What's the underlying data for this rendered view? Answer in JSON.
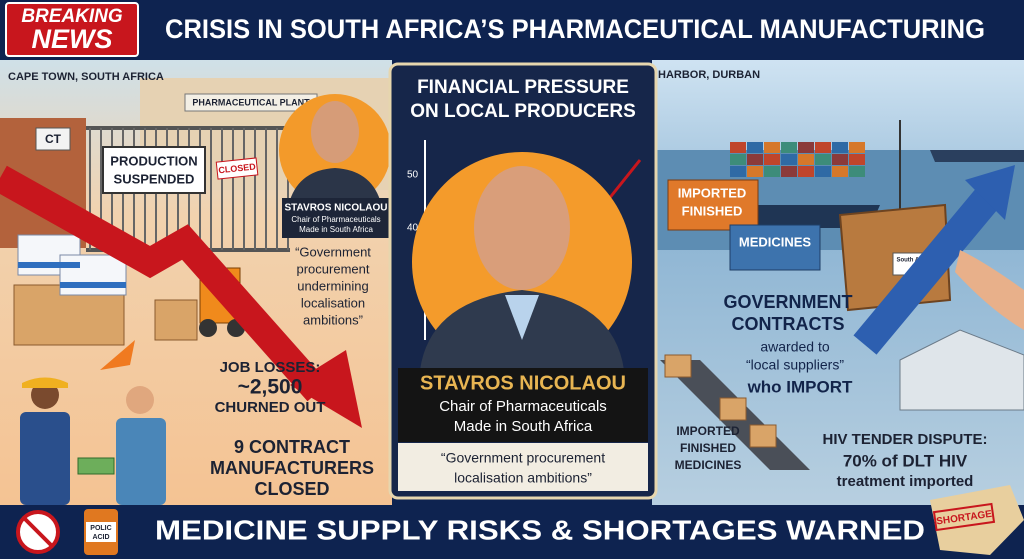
{
  "header": {
    "badge": [
      "BREAKING",
      "NEWS"
    ],
    "title": "CRISIS IN SOUTH AFRICA’S PHARMACEUTICAL MANUFACTURING"
  },
  "left_panel": {
    "location": "CAPE TOWN, SOUTH AFRICA",
    "sign": "CT",
    "plant_sign": "PHARMACEUTICAL PLANT",
    "production_sign": [
      "PRODUCTION",
      "SUSPENDED"
    ],
    "closed_tag": "CLOSED",
    "portrait": {
      "name": "STAVROS NICOLAOU",
      "role": [
        "Chair of Pharmaceuticals",
        "Made in South Africa"
      ]
    },
    "quote": [
      "“Government",
      "procurement",
      "undermining",
      "localisation",
      "ambitions”"
    ],
    "job_losses": [
      "JOB LOSSES:",
      "~2,500",
      "CHURNED OUT"
    ],
    "closures": [
      "9 CONTRACT",
      "MANUFACTURERS",
      "CLOSED"
    ]
  },
  "center_panel": {
    "heading": [
      "FINANCIAL PRESSURE",
      "ON LOCAL PRODUCERS"
    ],
    "axis_labels": [
      "50",
      "40"
    ],
    "name": "STAVROS NICOLAOU",
    "role": [
      "Chair of Pharmaceuticals",
      "Made in South Africa"
    ],
    "quote": [
      "“Government procurement",
      "localisation ambitions”"
    ]
  },
  "right_panel": {
    "location": "HARBOR, DURBAN",
    "container_labels": [
      "IMPORTED",
      "FINISHED",
      "MEDICINES"
    ],
    "crate_label": "South African",
    "contracts": [
      "GOVERNMENT",
      "CONTRACTS",
      "awarded to",
      "“local suppliers”",
      "who IMPORT"
    ],
    "conveyor_label": [
      "IMPORTED",
      "FINISHED",
      "MEDICINES"
    ],
    "hiv": [
      "HIV TENDER DISPUTE:",
      "70% of DLT HIV",
      "treatment imported"
    ]
  },
  "footer": {
    "headline": "MEDICINE SUPPLY RISKS & SHORTAGES WARNED",
    "bottle_label": [
      "POLIC",
      "ACID"
    ],
    "stamp": "SHORTAGE"
  }
}
